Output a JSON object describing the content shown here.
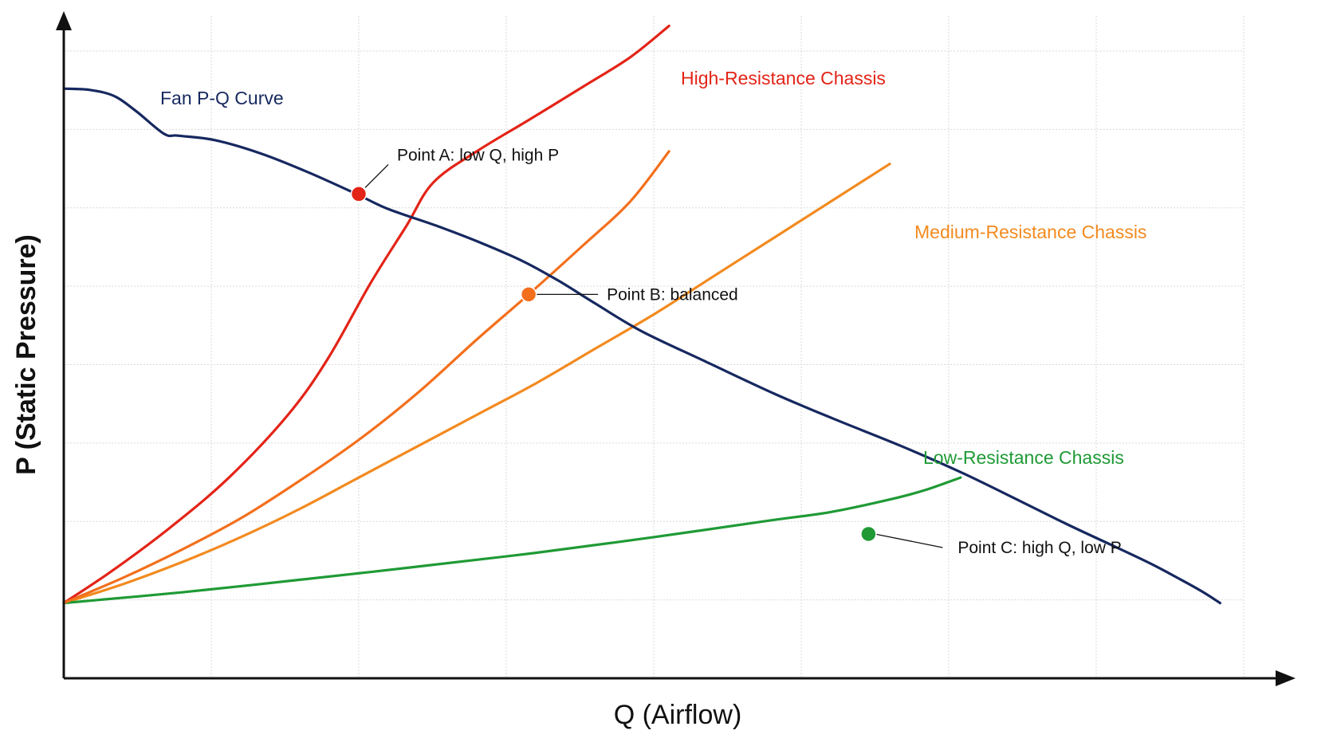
{
  "chart_data": {
    "type": "line",
    "xlabel": "Q (Airflow)",
    "ylabel": "P (Static Pressure)",
    "xlim": [
      0,
      1
    ],
    "ylim": [
      0,
      1
    ],
    "grid": true,
    "colors": {
      "fan": "#16285f",
      "high": "#e32417",
      "medium": "#f38a1f",
      "low": "#1f9a35",
      "pointB": "#f36f1c"
    },
    "series": [
      {
        "name": "Fan P-Q Curve",
        "color": "#16285f",
        "points": [
          [
            0.0,
            0.94
          ],
          [
            0.022,
            0.938
          ],
          [
            0.043,
            0.928
          ],
          [
            0.062,
            0.903
          ],
          [
            0.085,
            0.868
          ],
          [
            0.097,
            0.865
          ],
          [
            0.128,
            0.858
          ],
          [
            0.168,
            0.836
          ],
          [
            0.208,
            0.806
          ],
          [
            0.248,
            0.772
          ],
          [
            0.275,
            0.748
          ],
          [
            0.315,
            0.722
          ],
          [
            0.355,
            0.693
          ],
          [
            0.39,
            0.664
          ],
          [
            0.42,
            0.633
          ],
          [
            0.45,
            0.598
          ],
          [
            0.49,
            0.553
          ],
          [
            0.545,
            0.504
          ],
          [
            0.603,
            0.453
          ],
          [
            0.652,
            0.414
          ],
          [
            0.71,
            0.37
          ],
          [
            0.762,
            0.327
          ],
          [
            0.81,
            0.283
          ],
          [
            0.852,
            0.244
          ],
          [
            0.893,
            0.208
          ],
          [
            0.922,
            0.182
          ],
          [
            0.946,
            0.158
          ],
          [
            0.965,
            0.138
          ],
          [
            0.98,
            0.12
          ]
        ]
      },
      {
        "name": "High-Resistance Chassis",
        "color": "#e32417",
        "points": [
          [
            0.0,
            0.12
          ],
          [
            0.04,
            0.17
          ],
          [
            0.09,
            0.24
          ],
          [
            0.14,
            0.32
          ],
          [
            0.19,
            0.42
          ],
          [
            0.224,
            0.51
          ],
          [
            0.26,
            0.63
          ],
          [
            0.29,
            0.72
          ],
          [
            0.313,
            0.79
          ],
          [
            0.35,
            0.84
          ],
          [
            0.394,
            0.89
          ],
          [
            0.44,
            0.943
          ],
          [
            0.48,
            0.99
          ],
          [
            0.513,
            1.04
          ]
        ]
      },
      {
        "name": "Medium-Resistance Chassis",
        "color": "#f38a1f",
        "points": [
          [
            0.0,
            0.12
          ],
          [
            0.05,
            0.15
          ],
          [
            0.1,
            0.185
          ],
          [
            0.15,
            0.225
          ],
          [
            0.2,
            0.27
          ],
          [
            0.25,
            0.32
          ],
          [
            0.3,
            0.37
          ],
          [
            0.35,
            0.42
          ],
          [
            0.4,
            0.47
          ],
          [
            0.45,
            0.525
          ],
          [
            0.5,
            0.58
          ],
          [
            0.55,
            0.64
          ],
          [
            0.6,
            0.7
          ],
          [
            0.65,
            0.76
          ],
          [
            0.7,
            0.82
          ]
        ]
      },
      {
        "name": "Low-Resistance Chassis",
        "color": "#1f9a35",
        "points": [
          [
            0.0,
            0.12
          ],
          [
            0.1,
            0.137
          ],
          [
            0.2,
            0.157
          ],
          [
            0.3,
            0.178
          ],
          [
            0.4,
            0.2
          ],
          [
            0.5,
            0.225
          ],
          [
            0.6,
            0.252
          ],
          [
            0.65,
            0.265
          ],
          [
            0.7,
            0.285
          ],
          [
            0.73,
            0.3
          ],
          [
            0.76,
            0.32
          ]
        ]
      },
      {
        "name": "",
        "color": "#f36f1c",
        "points": [
          [
            0.0,
            0.12
          ],
          [
            0.05,
            0.16
          ],
          [
            0.1,
            0.205
          ],
          [
            0.15,
            0.255
          ],
          [
            0.2,
            0.315
          ],
          [
            0.25,
            0.38
          ],
          [
            0.3,
            0.455
          ],
          [
            0.35,
            0.54
          ],
          [
            0.394,
            0.612
          ],
          [
            0.44,
            0.69
          ],
          [
            0.48,
            0.76
          ],
          [
            0.513,
            0.84
          ]
        ]
      }
    ],
    "operating_points": [
      {
        "label": "Point A: low Q, high P",
        "x": 0.25,
        "y": 0.772,
        "color": "#e32417"
      },
      {
        "label": "Point B: balanced",
        "x": 0.394,
        "y": 0.612,
        "color": "#f36f1c"
      },
      {
        "label": "Point C: high Q, low P",
        "x": 0.682,
        "y": 0.23,
        "color": "#1f9a35"
      }
    ]
  }
}
